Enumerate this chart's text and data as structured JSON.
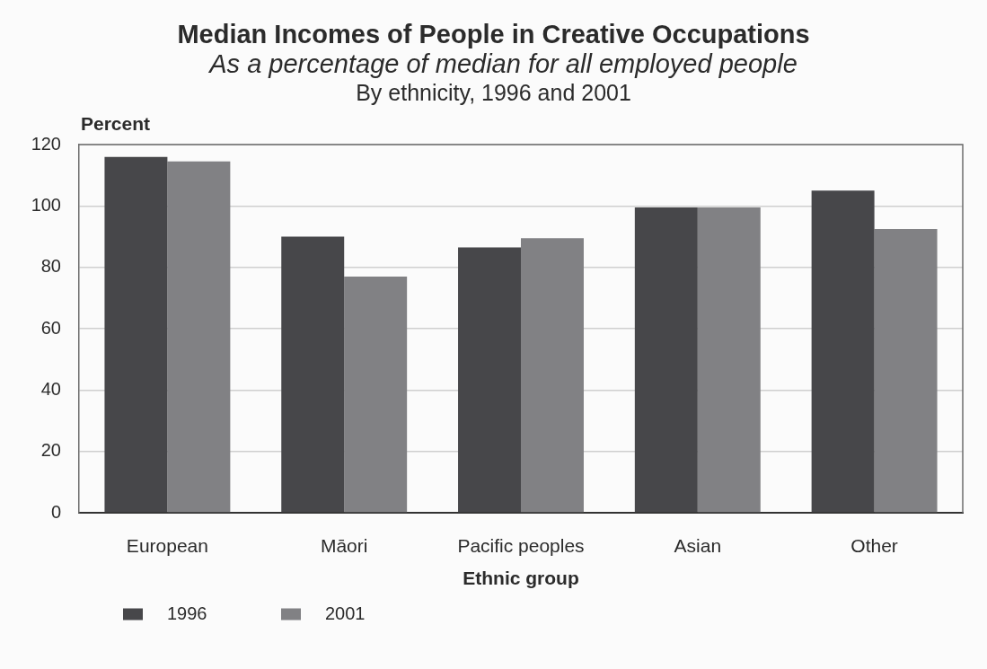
{
  "chart_data": {
    "type": "bar",
    "title": "Median Incomes of People in Creative Occupations",
    "subtitle": "As a percentage of median for all employed people",
    "annotations": [
      "By ethnicity, 1996 and 2001"
    ],
    "xlabel": "Ethnic group",
    "ylabel": "Percent",
    "categories": [
      "European",
      "Māori",
      "Pacific peoples",
      "Asian",
      "Other"
    ],
    "series": [
      {
        "name": "1996",
        "color": "#47474a",
        "values": [
          116,
          90,
          86.5,
          99.5,
          105
        ]
      },
      {
        "name": "2001",
        "color": "#818184",
        "values": [
          114.5,
          77,
          89.5,
          99.5,
          92.5
        ]
      }
    ],
    "ylim": [
      0,
      120
    ],
    "yticks": [
      0,
      20,
      40,
      60,
      80,
      100,
      120
    ],
    "grid": "y",
    "legend": "bottom left"
  }
}
